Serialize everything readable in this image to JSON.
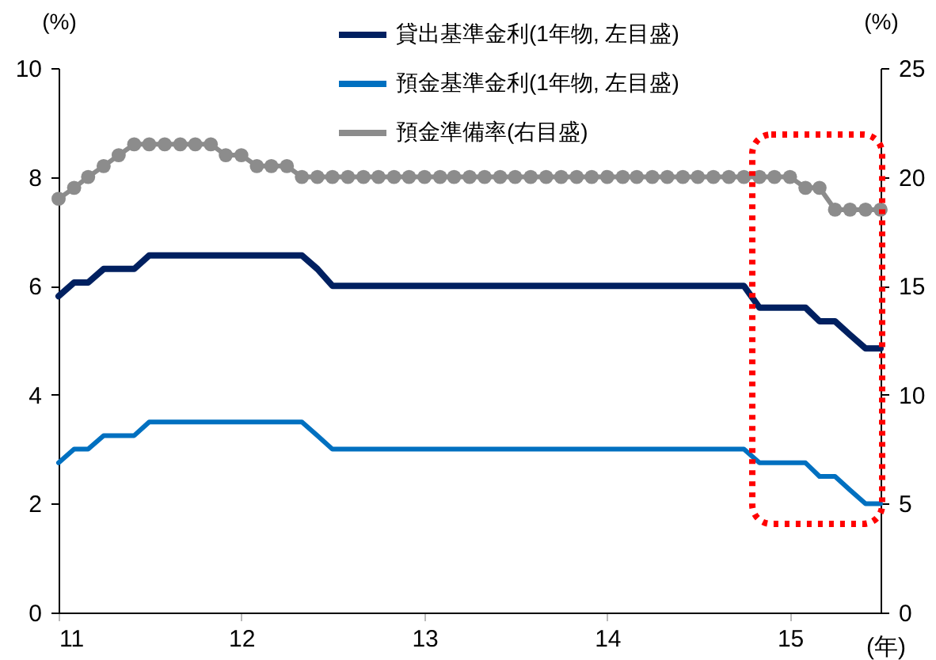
{
  "chart_data": {
    "type": "line",
    "x": [
      "2011-01",
      "2011-02",
      "2011-03",
      "2011-04",
      "2011-05",
      "2011-06",
      "2011-07",
      "2011-08",
      "2011-09",
      "2011-10",
      "2011-11",
      "2011-12",
      "2012-01",
      "2012-02",
      "2012-03",
      "2012-04",
      "2012-05",
      "2012-06",
      "2012-07",
      "2012-08",
      "2012-09",
      "2012-10",
      "2012-11",
      "2012-12",
      "2013-01",
      "2013-02",
      "2013-03",
      "2013-04",
      "2013-05",
      "2013-06",
      "2013-07",
      "2013-08",
      "2013-09",
      "2013-10",
      "2013-11",
      "2013-12",
      "2014-01",
      "2014-02",
      "2014-03",
      "2014-04",
      "2014-05",
      "2014-06",
      "2014-07",
      "2014-08",
      "2014-09",
      "2014-10",
      "2014-11",
      "2014-12",
      "2015-01",
      "2015-02",
      "2015-03",
      "2015-04",
      "2015-05",
      "2015-06",
      "2015-07"
    ],
    "series": [
      {
        "name": "貸出基準金利(1年物, 左目盛)",
        "color": "#002060",
        "values": [
          5.81,
          6.06,
          6.06,
          6.31,
          6.31,
          6.31,
          6.56,
          6.56,
          6.56,
          6.56,
          6.56,
          6.56,
          6.56,
          6.56,
          6.56,
          6.56,
          6.56,
          6.31,
          6.0,
          6.0,
          6.0,
          6.0,
          6.0,
          6.0,
          6.0,
          6.0,
          6.0,
          6.0,
          6.0,
          6.0,
          6.0,
          6.0,
          6.0,
          6.0,
          6.0,
          6.0,
          6.0,
          6.0,
          6.0,
          6.0,
          6.0,
          6.0,
          6.0,
          6.0,
          6.0,
          6.0,
          5.6,
          5.6,
          5.6,
          5.6,
          5.35,
          5.35,
          5.1,
          4.85,
          4.85
        ]
      },
      {
        "name": "預金基準金利(1年物, 左目盛)",
        "color": "#0070c0",
        "values": [
          2.75,
          3.0,
          3.0,
          3.25,
          3.25,
          3.25,
          3.5,
          3.5,
          3.5,
          3.5,
          3.5,
          3.5,
          3.5,
          3.5,
          3.5,
          3.5,
          3.5,
          3.25,
          3.0,
          3.0,
          3.0,
          3.0,
          3.0,
          3.0,
          3.0,
          3.0,
          3.0,
          3.0,
          3.0,
          3.0,
          3.0,
          3.0,
          3.0,
          3.0,
          3.0,
          3.0,
          3.0,
          3.0,
          3.0,
          3.0,
          3.0,
          3.0,
          3.0,
          3.0,
          3.0,
          3.0,
          2.75,
          2.75,
          2.75,
          2.75,
          2.5,
          2.5,
          2.25,
          2.0,
          2.0
        ]
      },
      {
        "name": "預金準備率(右目盛)",
        "color": "#8c8c8c",
        "axis": "y2",
        "marker": "circle",
        "values": [
          19.0,
          19.5,
          20.0,
          20.5,
          21.0,
          21.5,
          21.5,
          21.5,
          21.5,
          21.5,
          21.5,
          21.0,
          21.0,
          20.5,
          20.5,
          20.5,
          20.0,
          20.0,
          20.0,
          20.0,
          20.0,
          20.0,
          20.0,
          20.0,
          20.0,
          20.0,
          20.0,
          20.0,
          20.0,
          20.0,
          20.0,
          20.0,
          20.0,
          20.0,
          20.0,
          20.0,
          20.0,
          20.0,
          20.0,
          20.0,
          20.0,
          20.0,
          20.0,
          20.0,
          20.0,
          20.0,
          20.0,
          20.0,
          20.0,
          19.5,
          19.5,
          18.5,
          18.5,
          18.5,
          18.5
        ]
      }
    ],
    "xlabel": "(年)",
    "ylabel": "(%)",
    "y2label": "(%)",
    "xlim": [
      "2011-01",
      "2015-07"
    ],
    "xticks": [
      {
        "value": "2011-01",
        "label": "11"
      },
      {
        "value": "2012-01",
        "label": "12"
      },
      {
        "value": "2013-01",
        "label": "13"
      },
      {
        "value": "2014-01",
        "label": "14"
      },
      {
        "value": "2015-01",
        "label": "15"
      }
    ],
    "ylim": [
      0,
      10
    ],
    "yticks": [
      0,
      2,
      4,
      6,
      8,
      10
    ],
    "y2lim": [
      0,
      25
    ],
    "y2ticks": [
      0,
      5,
      10,
      15,
      20,
      25
    ],
    "legend": "top",
    "grid": false
  }
}
